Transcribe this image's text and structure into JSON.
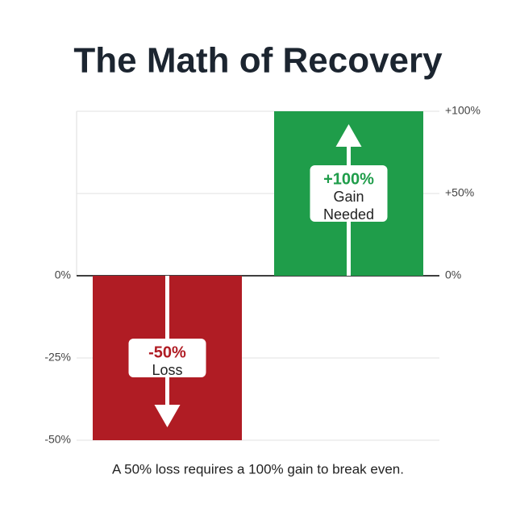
{
  "chart_data": {
    "type": "bar",
    "title": "The Math of Recovery",
    "subtitle": "A 50% loss requires a 100% gain to break even.",
    "categories": [
      null,
      null
    ],
    "series": [
      {
        "name": "Loss",
        "color": "#b01c24",
        "values": [
          -50,
          null
        ],
        "value_labels": [
          "-50%",
          null
        ],
        "axis": "y"
      },
      {
        "name": "Gain Needed",
        "color": "#1f9d4a",
        "values": [
          null,
          100
        ],
        "value_labels": [
          null,
          "+100%"
        ],
        "axis": "y2"
      }
    ],
    "ylim": [
      -50,
      50
    ],
    "yticks": [
      {
        "value": 0,
        "label": "0%"
      },
      {
        "value": -25,
        "label": "-25%"
      },
      {
        "value": -50,
        "label": "-50%"
      }
    ],
    "y2lim": [
      -100,
      100
    ],
    "y2ticks": [
      {
        "value": 100,
        "label": "+100%"
      },
      {
        "value": 50,
        "label": "+50%"
      },
      {
        "value": 0,
        "label": "0%"
      }
    ],
    "grid": true
  }
}
